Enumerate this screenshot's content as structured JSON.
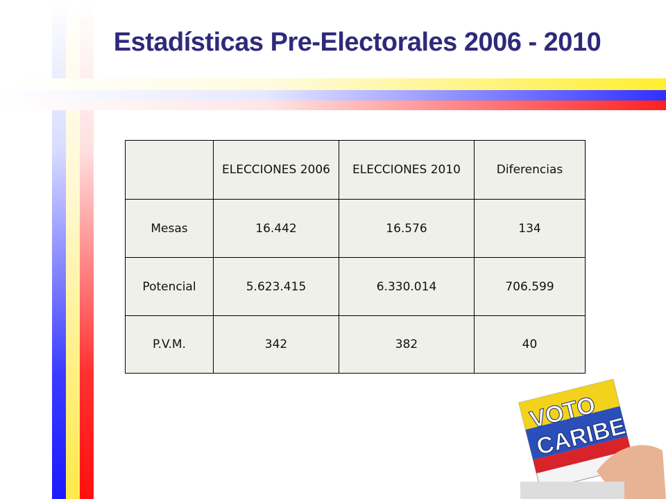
{
  "title": "Estadísticas Pre-Electorales 2006 - 2010",
  "table": {
    "header": [
      "",
      "ELECCIONES 2006",
      "ELECCIONES 2010",
      "Diferencias"
    ],
    "rows": [
      [
        "Mesas",
        "16.442",
        "16.576",
        "134"
      ],
      [
        "Potencial",
        "5.623.415",
        "6.330.014",
        "706.599"
      ],
      [
        "P.V.M.",
        "342",
        "382",
        "40"
      ]
    ]
  },
  "ballot": {
    "lines": [
      "VOTO",
      "CARIBE"
    ]
  }
}
